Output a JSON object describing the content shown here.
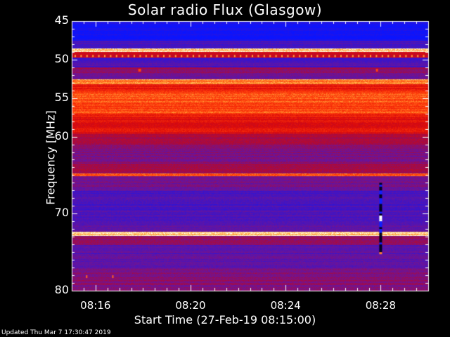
{
  "chart_data": {
    "type": "heatmap",
    "title": "Solar radio Flux (Glasgow)",
    "xlabel": "Start Time (27-Feb-19 08:15:00)",
    "ylabel": "Frequency [MHz]",
    "x_ticks": [
      "08:16",
      "08:20",
      "08:24",
      "08:28"
    ],
    "x_tick_minutes": [
      16,
      20,
      24,
      28
    ],
    "xlim_minutes": [
      15,
      30
    ],
    "y_ticks": [
      "45",
      "50",
      "55",
      "60",
      "70",
      "80"
    ],
    "y_tick_values": [
      45,
      50,
      55,
      60,
      70,
      80
    ],
    "ylim": [
      45,
      80
    ],
    "y_reversed": true,
    "intensity_bands": [
      {
        "from": 45.0,
        "to": 47.5,
        "level": 0.05
      },
      {
        "from": 47.5,
        "to": 48.5,
        "level": 0.25
      },
      {
        "from": 48.5,
        "to": 49.0,
        "level": 0.95
      },
      {
        "from": 49.0,
        "to": 49.7,
        "level": 0.6
      },
      {
        "from": 49.7,
        "to": 51.0,
        "level": 0.25
      },
      {
        "from": 51.0,
        "to": 51.7,
        "level": 0.45
      },
      {
        "from": 51.7,
        "to": 52.5,
        "level": 0.35
      },
      {
        "from": 52.5,
        "to": 53.2,
        "level": 0.9
      },
      {
        "from": 53.2,
        "to": 54.0,
        "level": 0.7
      },
      {
        "from": 54.0,
        "to": 57.0,
        "level": 0.8
      },
      {
        "from": 57.0,
        "to": 59.5,
        "level": 0.68
      },
      {
        "from": 59.5,
        "to": 61.0,
        "level": 0.5
      },
      {
        "from": 61.0,
        "to": 63.5,
        "level": 0.38
      },
      {
        "from": 63.5,
        "to": 64.7,
        "level": 0.48
      },
      {
        "from": 64.7,
        "to": 65.1,
        "level": 0.85
      },
      {
        "from": 65.1,
        "to": 67.0,
        "level": 0.35
      },
      {
        "from": 67.0,
        "to": 71.5,
        "level": 0.25
      },
      {
        "from": 71.5,
        "to": 72.3,
        "level": 0.32
      },
      {
        "from": 72.3,
        "to": 72.8,
        "level": 0.95
      },
      {
        "from": 72.8,
        "to": 74.0,
        "level": 0.45
      },
      {
        "from": 74.0,
        "to": 77.0,
        "level": 0.3
      },
      {
        "from": 77.0,
        "to": 80.0,
        "level": 0.4
      }
    ],
    "burst": {
      "minute": 28.0,
      "from_mhz": 66.0,
      "to_mhz": 75.0
    }
  },
  "footer": "Updated Thu Mar  7 17:30:47 2019"
}
